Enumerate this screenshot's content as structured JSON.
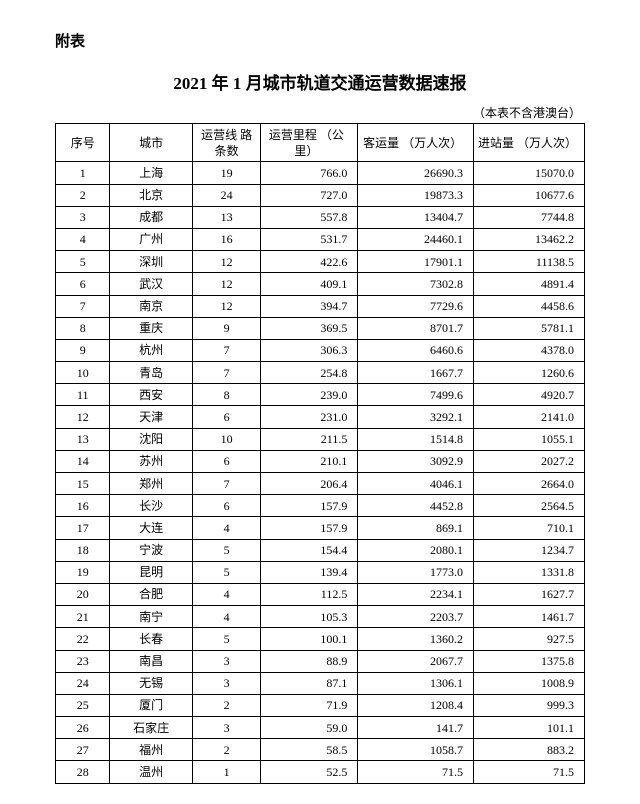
{
  "appendix_label": "附表",
  "title": "2021 年 1 月城市轨道交通运营数据速报",
  "note": "（本表不含港澳台）",
  "columns": [
    "序号",
    "城市",
    "运营线\n路条数",
    "运营里程\n（公里）",
    "客运量\n（万人次）",
    "进站量\n（万人次）"
  ],
  "col_widths_pct": [
    10,
    16,
    13,
    18,
    22,
    21
  ],
  "col_align": [
    "center",
    "center",
    "center",
    "right",
    "right",
    "right"
  ],
  "font_family": "SimSun",
  "header_fontsize": 12,
  "body_fontsize": 12,
  "title_fontsize": 17,
  "border_color": "#000000",
  "background_color": "#ffffff",
  "rows": [
    [
      1,
      "上海",
      19,
      "766.0",
      "26690.3",
      "15070.0"
    ],
    [
      2,
      "北京",
      24,
      "727.0",
      "19873.3",
      "10677.6"
    ],
    [
      3,
      "成都",
      13,
      "557.8",
      "13404.7",
      "7744.8"
    ],
    [
      4,
      "广州",
      16,
      "531.7",
      "24460.1",
      "13462.2"
    ],
    [
      5,
      "深圳",
      12,
      "422.6",
      "17901.1",
      "11138.5"
    ],
    [
      6,
      "武汉",
      12,
      "409.1",
      "7302.8",
      "4891.4"
    ],
    [
      7,
      "南京",
      12,
      "394.7",
      "7729.6",
      "4458.6"
    ],
    [
      8,
      "重庆",
      9,
      "369.5",
      "8701.7",
      "5781.1"
    ],
    [
      9,
      "杭州",
      7,
      "306.3",
      "6460.6",
      "4378.0"
    ],
    [
      10,
      "青岛",
      7,
      "254.8",
      "1667.7",
      "1260.6"
    ],
    [
      11,
      "西安",
      8,
      "239.0",
      "7499.6",
      "4920.7"
    ],
    [
      12,
      "天津",
      6,
      "231.0",
      "3292.1",
      "2141.0"
    ],
    [
      13,
      "沈阳",
      10,
      "211.5",
      "1514.8",
      "1055.1"
    ],
    [
      14,
      "苏州",
      6,
      "210.1",
      "3092.9",
      "2027.2"
    ],
    [
      15,
      "郑州",
      7,
      "206.4",
      "4046.1",
      "2664.0"
    ],
    [
      16,
      "长沙",
      6,
      "157.9",
      "4452.8",
      "2564.5"
    ],
    [
      17,
      "大连",
      4,
      "157.9",
      "869.1",
      "710.1"
    ],
    [
      18,
      "宁波",
      5,
      "154.4",
      "2080.1",
      "1234.7"
    ],
    [
      19,
      "昆明",
      5,
      "139.4",
      "1773.0",
      "1331.8"
    ],
    [
      20,
      "合肥",
      4,
      "112.5",
      "2234.1",
      "1627.7"
    ],
    [
      21,
      "南宁",
      4,
      "105.3",
      "2203.7",
      "1461.7"
    ],
    [
      22,
      "长春",
      5,
      "100.1",
      "1360.2",
      "927.5"
    ],
    [
      23,
      "南昌",
      3,
      "88.9",
      "2067.7",
      "1375.8"
    ],
    [
      24,
      "无锡",
      3,
      "87.1",
      "1306.1",
      "1008.9"
    ],
    [
      25,
      "厦门",
      2,
      "71.9",
      "1208.4",
      "999.3"
    ],
    [
      26,
      "石家庄",
      3,
      "59.0",
      "141.7",
      "101.1"
    ],
    [
      27,
      "福州",
      2,
      "58.5",
      "1058.7",
      "883.2"
    ],
    [
      28,
      "温州",
      1,
      "52.5",
      "71.5",
      "71.5"
    ]
  ]
}
